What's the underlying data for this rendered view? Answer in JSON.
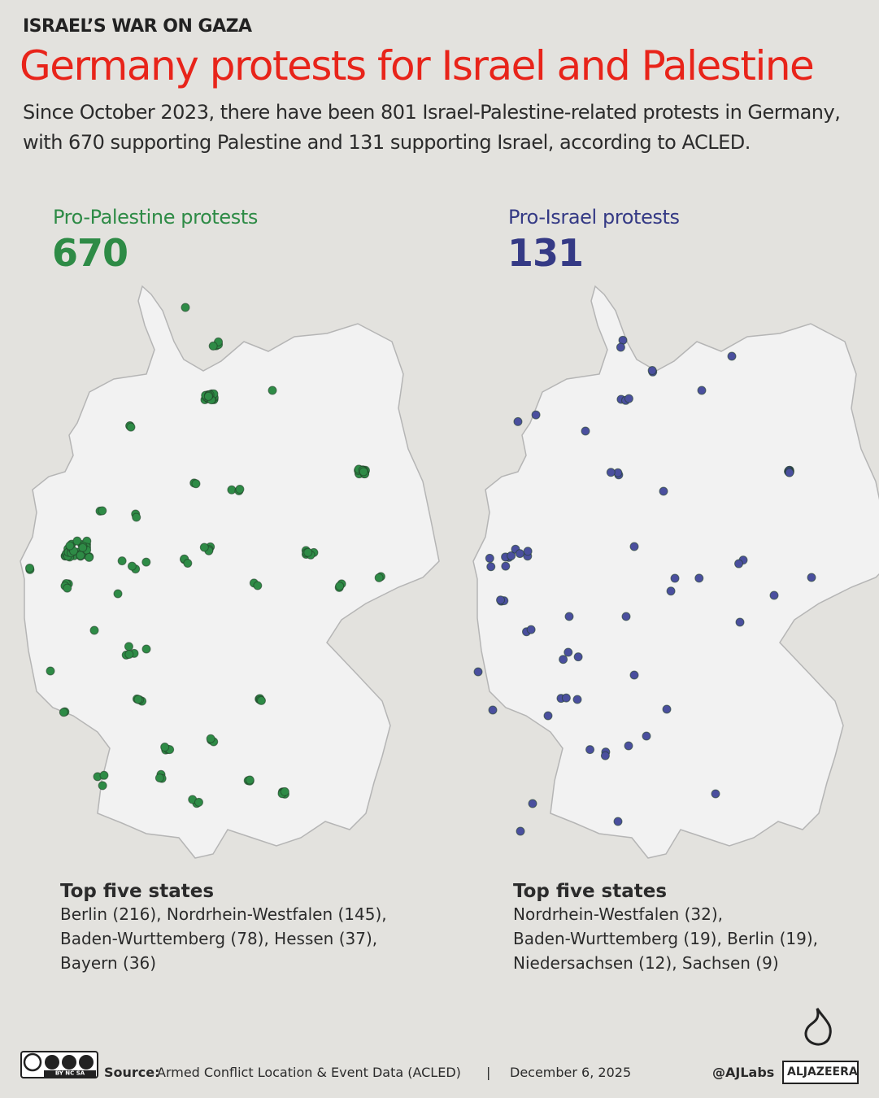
{
  "header": {
    "kicker": "ISRAEL’S WAR ON GAZA",
    "title": "Germany protests for Israel and Palestine",
    "subtitle": [
      "Since October 2023, there have been 801 Israel-Palestine-related protests in Germany,",
      "with 670 supporting Palestine and 131 supporting Israel, according to ACLED."
    ]
  },
  "panels": [
    {
      "label": "Pro-Palestine protests",
      "count": 670,
      "top_heading": "Top five states",
      "top_states": [
        "Berlin (216), Nordrhein-Westfalen (145),",
        "Baden-Wurttemberg (78), Hessen (37),",
        "Bayern (36)"
      ]
    },
    {
      "label": "Pro-Israel protests",
      "count": 131,
      "top_heading": "Top five states",
      "top_states": [
        "Nordrhein-Westfalen (32),",
        "Baden-Wurttemberg (19), Berlin (19),",
        "Niedersachsen (12), Sachsen (9)"
      ]
    }
  ],
  "footer": {
    "license": "BY NC SA",
    "source_label": "Source:",
    "source": "Armed Conflict Location & Event Data (ACLED)",
    "separator": "|",
    "date": "December 6, 2025",
    "handle": "@AJLabs",
    "brand": "ALJAZEERA"
  }
}
